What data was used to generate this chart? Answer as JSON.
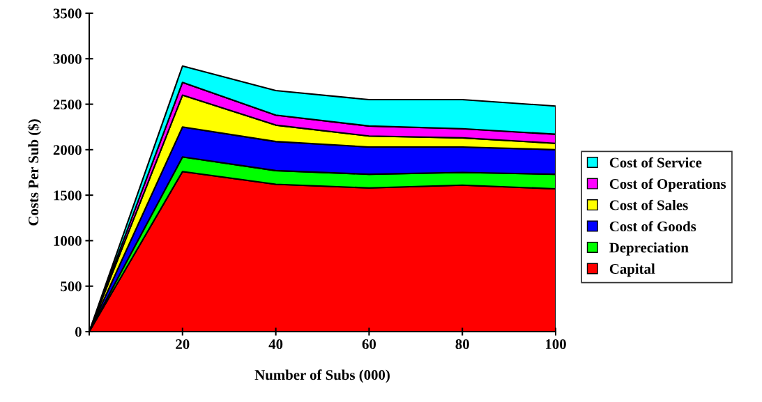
{
  "chart_data": {
    "type": "area",
    "stacked": true,
    "xlabel": "Number of Subs (000)",
    "ylabel": "Costs Per Sub ($)",
    "x": [
      0,
      20,
      40,
      60,
      80,
      100
    ],
    "xlim": [
      0,
      100
    ],
    "xticks": [
      {
        "value": 0,
        "label": null
      },
      20,
      40,
      60,
      80,
      100
    ],
    "ylim": [
      0,
      3500
    ],
    "yticks": [
      0,
      500,
      1000,
      1500,
      2000,
      2500,
      3000,
      3500
    ],
    "grid": false,
    "legend": "right",
    "series": [
      {
        "name": "Capital",
        "color": "#ff0000",
        "values": [
          0,
          1760,
          1620,
          1580,
          1610,
          1570
        ]
      },
      {
        "name": "Depreciation",
        "color": "#00ff00",
        "values": [
          0,
          160,
          150,
          150,
          140,
          160
        ]
      },
      {
        "name": "Cost of Goods",
        "color": "#0000ff",
        "values": [
          0,
          330,
          320,
          300,
          280,
          270
        ]
      },
      {
        "name": "Cost of Sales",
        "color": "#ffff00",
        "values": [
          0,
          350,
          180,
          120,
          100,
          70
        ]
      },
      {
        "name": "Cost of Operations",
        "color": "#ff00ff",
        "values": [
          0,
          140,
          110,
          110,
          100,
          100
        ]
      },
      {
        "name": "Cost of Service",
        "color": "#00ffff",
        "values": [
          0,
          180,
          270,
          290,
          320,
          310
        ]
      }
    ]
  }
}
